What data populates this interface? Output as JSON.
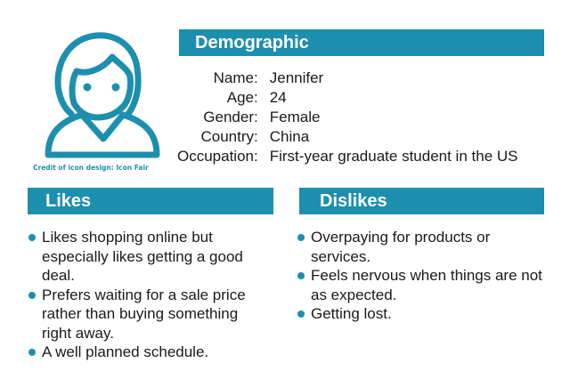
{
  "avatar": {
    "icon": "person-avatar-icon",
    "color": "#1d8fae"
  },
  "credit": "Credit of icon design: Icon Fair",
  "demographic": {
    "title": "Demographic",
    "rows": [
      {
        "label": "Name:",
        "value": "Jennifer"
      },
      {
        "label": "Age:",
        "value": "24"
      },
      {
        "label": "Gender:",
        "value": "Female"
      },
      {
        "label": "Country:",
        "value": "China"
      },
      {
        "label": "Occupation:",
        "value": "First-year graduate student in the US"
      }
    ]
  },
  "likes": {
    "title": "Likes",
    "items": [
      "Likes shopping online but especially likes getting a good deal.",
      "Prefers waiting for a sale price rather than buying something right away.",
      "A well planned schedule."
    ]
  },
  "dislikes": {
    "title": "Dislikes",
    "items": [
      "Overpaying for products or services.",
      "Feels nervous when things are not as expected.",
      "Getting lost."
    ]
  },
  "colors": {
    "accent": "#1d8fae",
    "header_text": "#ffffff",
    "body_text": "#1a1a1a"
  }
}
